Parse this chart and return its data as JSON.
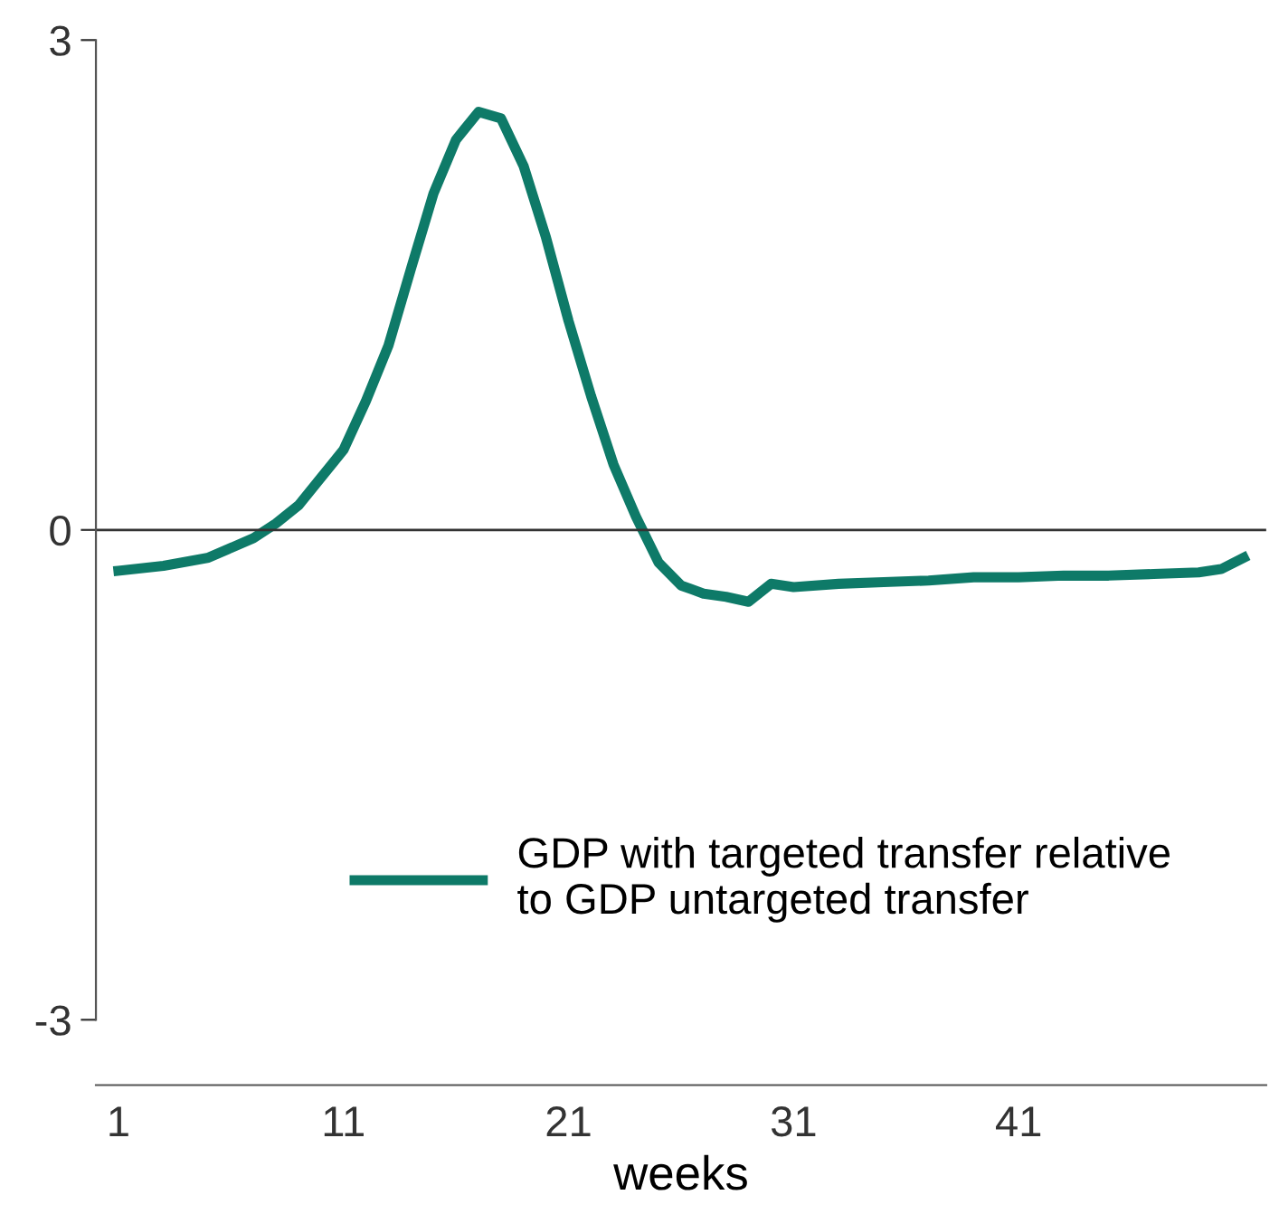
{
  "chart_data": {
    "type": "line",
    "xlabel": "weeks",
    "x": [
      1,
      3,
      5,
      6,
      7,
      8,
      9,
      10,
      11,
      12,
      13,
      14,
      15,
      16,
      17,
      18,
      19,
      20,
      21,
      22,
      23,
      24,
      25,
      26,
      27,
      28,
      29,
      30,
      31,
      33,
      35,
      37,
      39,
      41,
      43,
      45,
      47,
      49,
      50,
      51
    ],
    "series": [
      {
        "name": "GDP with targeted transfer relative\nto GDP untargeted transfer",
        "color": "#0e7a68",
        "values": [
          -0.25,
          -0.22,
          -0.17,
          -0.11,
          -0.05,
          0.04,
          0.15,
          0.32,
          0.49,
          0.79,
          1.13,
          1.6,
          2.06,
          2.39,
          2.56,
          2.52,
          2.23,
          1.79,
          1.28,
          0.82,
          0.4,
          0.08,
          -0.2,
          -0.34,
          -0.39,
          -0.41,
          -0.44,
          -0.33,
          -0.35,
          -0.33,
          -0.32,
          -0.31,
          -0.29,
          -0.29,
          -0.28,
          -0.28,
          -0.27,
          -0.26,
          -0.24,
          -0.17
        ]
      }
    ],
    "xlim": [
      0,
      52
    ],
    "xticks": [
      1,
      11,
      21,
      31,
      41
    ],
    "ylim": [
      -3,
      3
    ],
    "yticks": [
      -3,
      0,
      3
    ],
    "ref_lines": [
      {
        "axis": "y",
        "value": 0
      }
    ],
    "grid": false,
    "legend": "bottom",
    "marker": "none",
    "line_style": "solid"
  }
}
